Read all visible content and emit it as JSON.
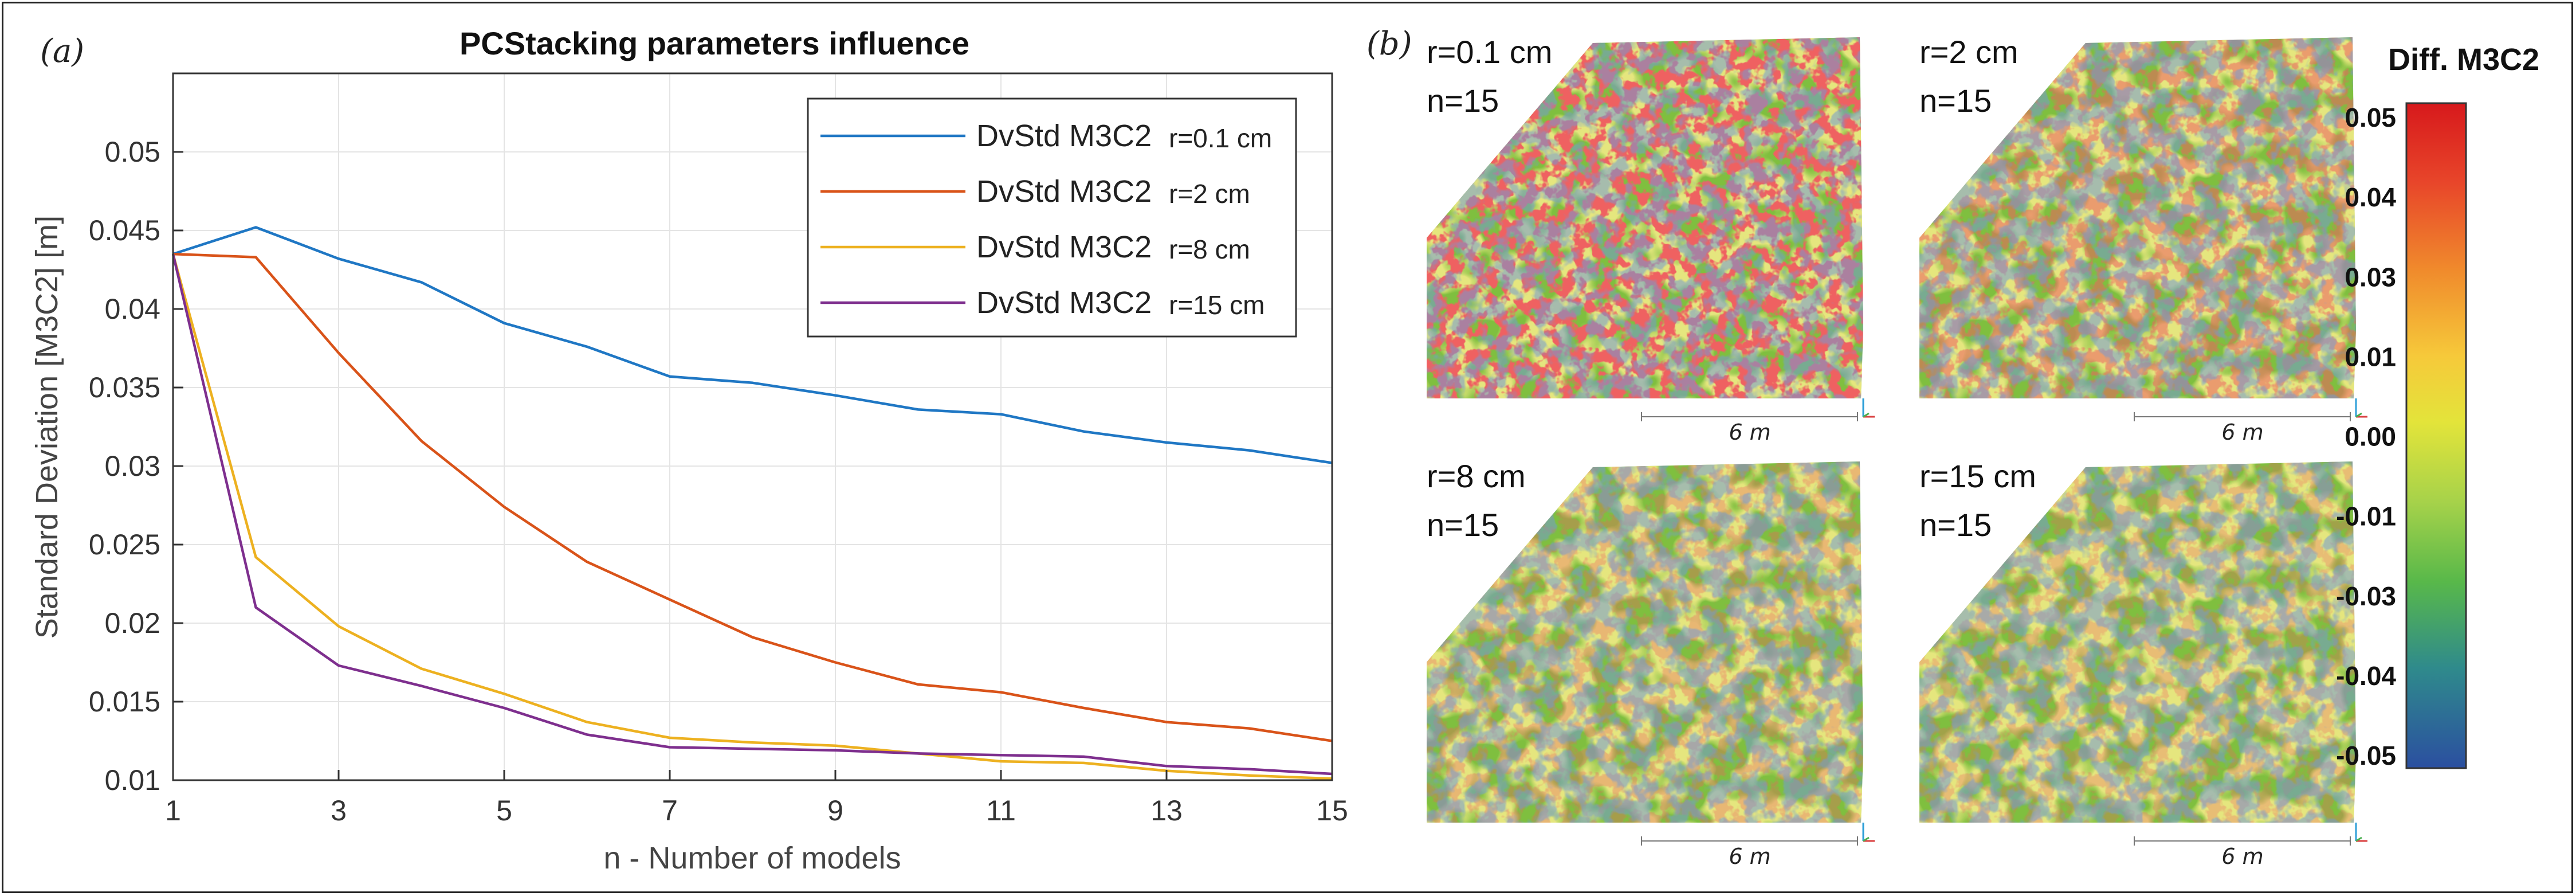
{
  "panel_a": {
    "label": "(a)"
  },
  "panel_b": {
    "label": "(b)"
  },
  "chart_data": {
    "type": "line",
    "title": "PCStacking parameters influence",
    "xlabel": "n - Number of models",
    "ylabel": "Standard Deviation [M3C2] [m]",
    "xlim": [
      1,
      15
    ],
    "ylim": [
      0.01,
      0.055
    ],
    "x_ticks": [
      1,
      3,
      5,
      7,
      9,
      11,
      13,
      15
    ],
    "y_ticks": [
      0.01,
      0.015,
      0.02,
      0.025,
      0.03,
      0.035,
      0.04,
      0.045,
      0.05
    ],
    "x_tick_labels": [
      "1",
      "3",
      "5",
      "7",
      "9",
      "11",
      "13",
      "15"
    ],
    "y_tick_labels": [
      "0.01",
      "0.015",
      "0.02",
      "0.025",
      "0.03",
      "0.035",
      "0.04",
      "0.045",
      "0.05"
    ],
    "legend_position": "top-right",
    "x": [
      1,
      2,
      3,
      4,
      5,
      6,
      7,
      8,
      9,
      10,
      11,
      12,
      13,
      14,
      15
    ],
    "series": [
      {
        "name": "DvStd M3C2",
        "suffix": "r=0.1 cm",
        "color": "#1f77c4",
        "values": [
          0.0435,
          0.0452,
          0.0432,
          0.0417,
          0.0391,
          0.0376,
          0.0357,
          0.0353,
          0.0345,
          0.0336,
          0.0333,
          0.0322,
          0.0315,
          0.031,
          0.0302
        ]
      },
      {
        "name": "DvStd M3C2",
        "suffix": "r=2 cm",
        "color": "#d95319",
        "values": [
          0.0435,
          0.0433,
          0.0372,
          0.0316,
          0.0274,
          0.0239,
          0.0215,
          0.0191,
          0.0175,
          0.0161,
          0.0156,
          0.0146,
          0.0137,
          0.0133,
          0.0125
        ]
      },
      {
        "name": "DvStd M3C2",
        "suffix": "r=8 cm",
        "color": "#edb120",
        "values": [
          0.0435,
          0.0242,
          0.0198,
          0.0171,
          0.0155,
          0.0137,
          0.0127,
          0.0124,
          0.0122,
          0.0117,
          0.0112,
          0.0111,
          0.0106,
          0.0103,
          0.0101
        ]
      },
      {
        "name": "DvStd M3C2",
        "suffix": "r=15 cm",
        "color": "#7e2f8e",
        "values": [
          0.0435,
          0.021,
          0.0173,
          0.016,
          0.0146,
          0.0129,
          0.0121,
          0.012,
          0.0119,
          0.0117,
          0.0116,
          0.0115,
          0.0109,
          0.0107,
          0.0104
        ]
      }
    ]
  },
  "maps": [
    {
      "r_label": "r=0.1 cm",
      "n_label": "n=15",
      "scale_label": "6 m"
    },
    {
      "r_label": "r=2 cm",
      "n_label": "n=15",
      "scale_label": "6 m"
    },
    {
      "r_label": "r=8 cm",
      "n_label": "n=15",
      "scale_label": "6 m"
    },
    {
      "r_label": "r=15 cm",
      "n_label": "n=15",
      "scale_label": "6 m"
    }
  ],
  "colorbar": {
    "title": "Diff. M3C2",
    "tick_labels": [
      "0.05",
      "0.04",
      "0.03",
      "0.01",
      "0.00",
      "-0.01",
      "-0.03",
      "-0.04",
      "-0.05"
    ],
    "colors": [
      "#d7191c",
      "#e8462a",
      "#f08a2c",
      "#f6c93a",
      "#e3e43a",
      "#a6d24a",
      "#58b84a",
      "#2f8a8c",
      "#2b4fa0"
    ]
  }
}
